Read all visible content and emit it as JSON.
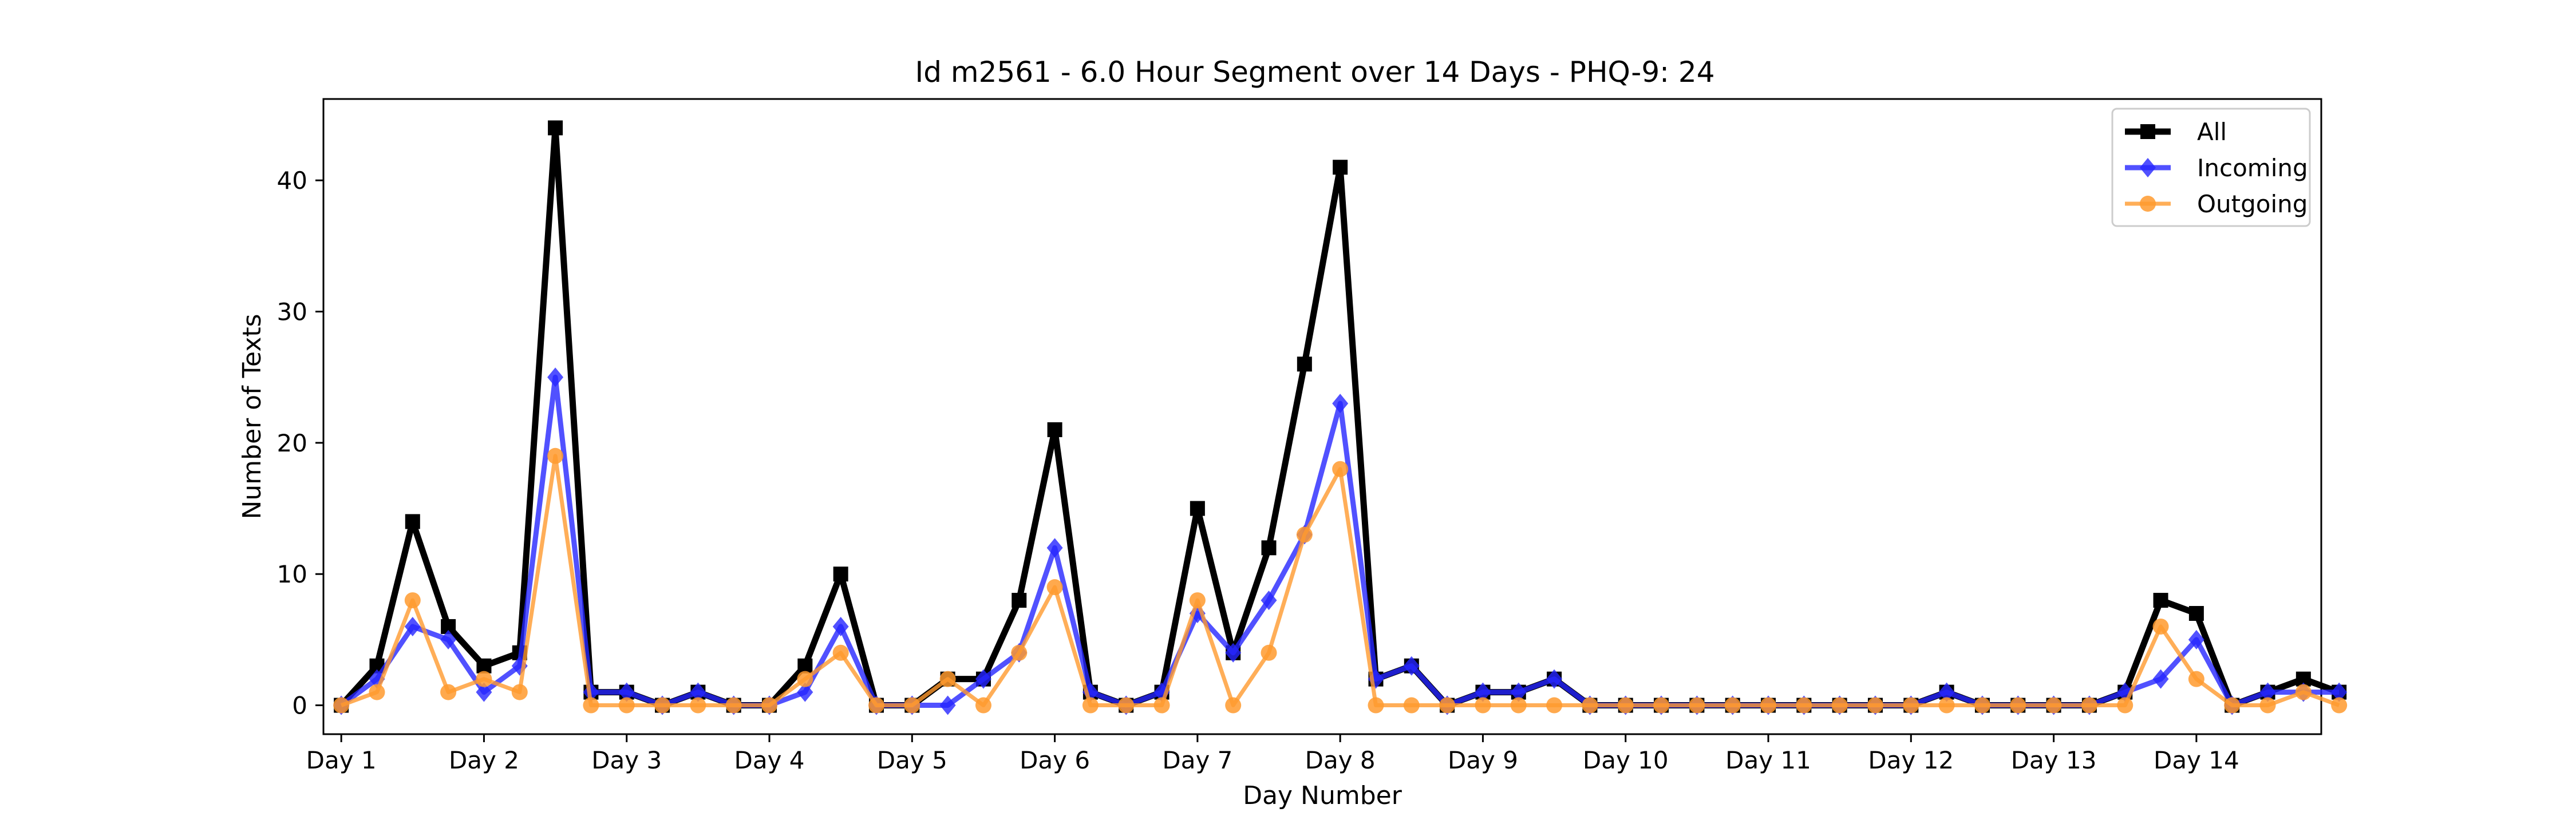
{
  "chart_data": {
    "type": "line",
    "title": "Id m2561 - 6.0 Hour Segment over 14 Days - PHQ-9: 24",
    "xlabel": "Day Number",
    "ylabel": "Number of Texts",
    "xlim": [
      -0.5,
      55.5
    ],
    "ylim": [
      -2.2,
      46.2
    ],
    "x_ticks": [
      0,
      4,
      8,
      12,
      16,
      20,
      24,
      28,
      32,
      36,
      40,
      44,
      48,
      52
    ],
    "x_tick_labels": [
      "Day 1",
      "Day 2",
      "Day 3",
      "Day 4",
      "Day 5",
      "Day 6",
      "Day 7",
      "Day 8",
      "Day 9",
      "Day 10",
      "Day 11",
      "Day 12",
      "Day 13",
      "Day 14"
    ],
    "y_ticks": [
      0,
      10,
      20,
      30,
      40
    ],
    "y_tick_labels": [
      "0",
      "10",
      "20",
      "30",
      "40"
    ],
    "grid": false,
    "legend_position": "top-right",
    "series": [
      {
        "name": "All",
        "color": "#000000",
        "marker": "square",
        "values": [
          0,
          3,
          14,
          6,
          3,
          4,
          44,
          1,
          1,
          0,
          1,
          0,
          0,
          3,
          10,
          0,
          0,
          2,
          2,
          8,
          21,
          1,
          0,
          1,
          15,
          4,
          12,
          26,
          41,
          2,
          3,
          0,
          1,
          1,
          2,
          0,
          0,
          0,
          0,
          0,
          0,
          0,
          0,
          0,
          0,
          1,
          0,
          0,
          0,
          0,
          1,
          8,
          7,
          0,
          1,
          2,
          1
        ]
      },
      {
        "name": "Incoming",
        "color": "#2626ff",
        "marker": "diamond",
        "values": [
          0,
          2,
          6,
          5,
          1,
          3,
          25,
          1,
          1,
          0,
          1,
          0,
          0,
          1,
          6,
          0,
          0,
          0,
          2,
          4,
          12,
          1,
          0,
          1,
          7,
          4,
          8,
          13,
          23,
          2,
          3,
          0,
          1,
          1,
          2,
          0,
          0,
          0,
          0,
          0,
          0,
          0,
          0,
          0,
          0,
          1,
          0,
          0,
          0,
          0,
          1,
          2,
          5,
          0,
          1,
          1,
          1
        ]
      },
      {
        "name": "Outgoing",
        "color": "#ff9a2e",
        "marker": "circle",
        "values": [
          0,
          1,
          8,
          1,
          2,
          1,
          19,
          0,
          0,
          0,
          0,
          0,
          0,
          2,
          4,
          0,
          0,
          2,
          0,
          4,
          9,
          0,
          0,
          0,
          8,
          0,
          4,
          13,
          18,
          0,
          0,
          0,
          0,
          0,
          0,
          0,
          0,
          0,
          0,
          0,
          0,
          0,
          0,
          0,
          0,
          0,
          0,
          0,
          0,
          0,
          0,
          6,
          2,
          0,
          0,
          1,
          0
        ]
      }
    ]
  }
}
